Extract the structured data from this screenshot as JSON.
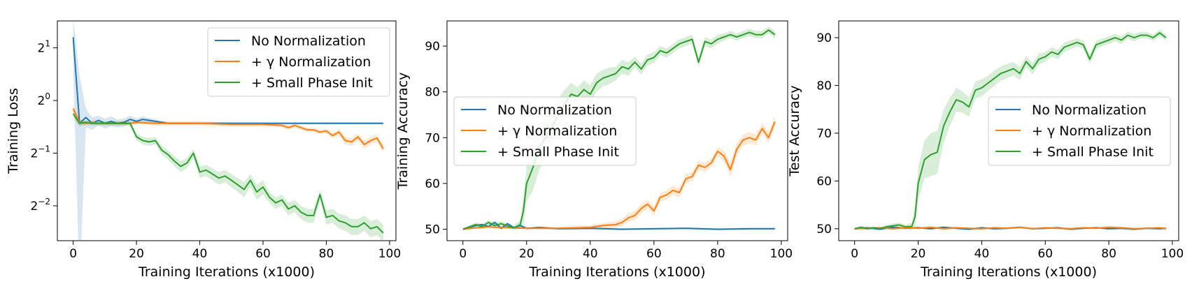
{
  "series_colors": {
    "No Normalization": "#1f77b4",
    "+ γ Normalization": "#ff7f0e",
    "+ Small Phase Init": "#2ca02c"
  },
  "chart_data": [
    {
      "type": "line",
      "title": "",
      "xlabel": "Training Iterations (x1000)",
      "ylabel": "Training Loss",
      "yscale": "log2",
      "xlim": [
        -5,
        102
      ],
      "ylim": [
        0.158,
        2.85
      ],
      "xticks": [
        0,
        20,
        40,
        60,
        80,
        100
      ],
      "yticks": [
        {
          "value": 0.25,
          "base": "2",
          "exp": "−2"
        },
        {
          "value": 0.5,
          "base": "2",
          "exp": "−1"
        },
        {
          "value": 1,
          "base": "2",
          "exp": "0"
        },
        {
          "value": 2,
          "base": "2",
          "exp": "1"
        }
      ],
      "legend": {
        "position": "top-right",
        "entries": [
          "No Normalization",
          "+ γ Normalization",
          "+ Small Phase Init"
        ]
      },
      "series": [
        {
          "name": "No Normalization",
          "color": "#1f77b4",
          "x": [
            0,
            2,
            4,
            6,
            8,
            10,
            12,
            14,
            16,
            18,
            20,
            22,
            30,
            40,
            50,
            60,
            70,
            80,
            90,
            98
          ],
          "y": [
            2.3,
            0.74,
            0.8,
            0.74,
            0.77,
            0.74,
            0.76,
            0.74,
            0.75,
            0.78,
            0.76,
            0.78,
            0.74,
            0.74,
            0.74,
            0.74,
            0.74,
            0.74,
            0.74,
            0.74
          ],
          "band": [
            0.7,
            0.65,
            0.1,
            0.06,
            0.05,
            0.05,
            0.05,
            0.04,
            0.04,
            0.04,
            0.03,
            0.03,
            0.01,
            0.01,
            0.01,
            0.01,
            0.01,
            0.01,
            0.01,
            0.01
          ]
        },
        {
          "name": "+ γ Normalization",
          "color": "#ff7f0e",
          "x": [
            0,
            2,
            4,
            6,
            8,
            10,
            14,
            18,
            20,
            26,
            30,
            40,
            50,
            60,
            66,
            68,
            70,
            72,
            74,
            76,
            78,
            80,
            82,
            84,
            86,
            88,
            90,
            92,
            94,
            96,
            98
          ],
          "y": [
            0.9,
            0.75,
            0.74,
            0.75,
            0.74,
            0.74,
            0.74,
            0.74,
            0.75,
            0.74,
            0.74,
            0.74,
            0.73,
            0.73,
            0.72,
            0.7,
            0.72,
            0.7,
            0.68,
            0.68,
            0.66,
            0.67,
            0.63,
            0.66,
            0.59,
            0.58,
            0.62,
            0.56,
            0.59,
            0.61,
            0.53
          ],
          "band": [
            0.06,
            0.03,
            0.02,
            0.02,
            0.02,
            0.02,
            0.02,
            0.02,
            0.02,
            0.02,
            0.02,
            0.02,
            0.02,
            0.02,
            0.02,
            0.02,
            0.02,
            0.02,
            0.02,
            0.02,
            0.02,
            0.02,
            0.02,
            0.03,
            0.03,
            0.03,
            0.03,
            0.03,
            0.03,
            0.03,
            0.03
          ]
        },
        {
          "name": "+ Small Phase Init",
          "color": "#2ca02c",
          "x": [
            0,
            2,
            4,
            6,
            8,
            10,
            12,
            14,
            16,
            18,
            20,
            22,
            24,
            26,
            28,
            30,
            32,
            34,
            36,
            38,
            40,
            42,
            44,
            46,
            48,
            50,
            52,
            54,
            56,
            58,
            60,
            62,
            64,
            66,
            68,
            70,
            72,
            74,
            76,
            78,
            80,
            82,
            84,
            86,
            88,
            90,
            92,
            94,
            96,
            98
          ],
          "y": [
            0.84,
            0.74,
            0.75,
            0.74,
            0.74,
            0.74,
            0.74,
            0.74,
            0.74,
            0.74,
            0.62,
            0.59,
            0.58,
            0.59,
            0.52,
            0.49,
            0.45,
            0.42,
            0.44,
            0.5,
            0.39,
            0.4,
            0.38,
            0.36,
            0.37,
            0.35,
            0.33,
            0.31,
            0.35,
            0.3,
            0.32,
            0.28,
            0.26,
            0.27,
            0.24,
            0.25,
            0.23,
            0.22,
            0.22,
            0.29,
            0.215,
            0.22,
            0.205,
            0.2,
            0.19,
            0.19,
            0.2,
            0.185,
            0.19,
            0.175
          ],
          "band": [
            0.05,
            0.03,
            0.02,
            0.02,
            0.02,
            0.02,
            0.02,
            0.02,
            0.02,
            0.02,
            0.03,
            0.03,
            0.03,
            0.03,
            0.03,
            0.03,
            0.03,
            0.03,
            0.03,
            0.03,
            0.03,
            0.03,
            0.03,
            0.03,
            0.03,
            0.03,
            0.03,
            0.03,
            0.03,
            0.03,
            0.03,
            0.02,
            0.02,
            0.02,
            0.02,
            0.02,
            0.02,
            0.02,
            0.02,
            0.02,
            0.02,
            0.02,
            0.02,
            0.02,
            0.02,
            0.02,
            0.02,
            0.02,
            0.02,
            0.02
          ]
        }
      ]
    },
    {
      "type": "line",
      "title": "",
      "xlabel": "Training Iterations (x1000)",
      "ylabel": "Training Accuracy",
      "yscale": "linear",
      "xlim": [
        -5,
        102
      ],
      "ylim": [
        47.5,
        95.5
      ],
      "xticks": [
        0,
        20,
        40,
        60,
        80,
        100
      ],
      "yticks": [
        50,
        60,
        70,
        80,
        90
      ],
      "legend": {
        "position": "center-left",
        "entries": [
          "No Normalization",
          "+ γ Normalization",
          "+ Small Phase Init"
        ]
      },
      "series": [
        {
          "name": "No Normalization",
          "color": "#1f77b4",
          "x": [
            0,
            2,
            4,
            6,
            8,
            10,
            12,
            14,
            16,
            18,
            20,
            24,
            30,
            40,
            50,
            60,
            70,
            80,
            90,
            98
          ],
          "y": [
            50,
            50.4,
            50.8,
            51.0,
            50.6,
            51.5,
            50.2,
            51.2,
            50.3,
            50.8,
            50.2,
            50.4,
            50.1,
            50.2,
            50.0,
            50.1,
            50.2,
            50.0,
            50.1,
            50.1
          ],
          "band": [
            0.2,
            0.3,
            0.3,
            0.3,
            0.3,
            0.4,
            0.3,
            0.3,
            0.3,
            0.3,
            0.2,
            0.2,
            0.2,
            0.2,
            0.2,
            0.2,
            0.2,
            0.2,
            0.2,
            0.2
          ]
        },
        {
          "name": "+ γ Normalization",
          "color": "#ff7f0e",
          "x": [
            0,
            4,
            8,
            12,
            16,
            20,
            30,
            40,
            44,
            48,
            50,
            52,
            54,
            56,
            58,
            60,
            62,
            64,
            66,
            68,
            70,
            72,
            74,
            76,
            78,
            80,
            82,
            84,
            86,
            88,
            90,
            92,
            94,
            96,
            98
          ],
          "y": [
            50,
            50.3,
            50.5,
            50.4,
            50.3,
            50.2,
            50.2,
            50.4,
            50.8,
            51.0,
            51.5,
            52.5,
            53.0,
            54.5,
            55.5,
            54.0,
            57.0,
            57.5,
            58.5,
            58.0,
            61.0,
            61.5,
            64.0,
            63.5,
            64.5,
            67.0,
            66.0,
            63.0,
            67.5,
            69.5,
            70.0,
            69.5,
            72.0,
            70.0,
            73.5
          ],
          "band": [
            0.2,
            0.2,
            0.2,
            0.2,
            0.2,
            0.2,
            0.3,
            0.5,
            0.6,
            0.7,
            0.8,
            0.9,
            1.0,
            1.0,
            1.0,
            1.0,
            1.0,
            1.0,
            1.0,
            1.0,
            1.0,
            1.0,
            1.0,
            1.0,
            1.0,
            1.0,
            1.2,
            1.5,
            1.3,
            1.2,
            1.2,
            1.2,
            1.2,
            1.2,
            1.2
          ]
        },
        {
          "name": "+ Small Phase Init",
          "color": "#2ca02c",
          "x": [
            0,
            2,
            4,
            6,
            8,
            10,
            12,
            14,
            16,
            18,
            19,
            20,
            22,
            24,
            26,
            28,
            30,
            32,
            34,
            36,
            38,
            40,
            42,
            44,
            46,
            48,
            50,
            52,
            54,
            56,
            58,
            60,
            62,
            64,
            66,
            68,
            70,
            72,
            74,
            76,
            78,
            80,
            82,
            84,
            86,
            88,
            90,
            92,
            94,
            96,
            98
          ],
          "y": [
            50,
            50.5,
            51.0,
            50.6,
            51.5,
            50.8,
            51.2,
            50.7,
            50.3,
            51.0,
            54.0,
            60.0,
            63.5,
            68.0,
            70.0,
            72.5,
            75.0,
            77.5,
            79.5,
            79.0,
            80.5,
            79.5,
            82.0,
            83.0,
            83.5,
            84.0,
            85.5,
            85.0,
            86.5,
            85.0,
            87.0,
            87.5,
            89.0,
            88.5,
            89.5,
            90.5,
            91.0,
            91.5,
            86.5,
            91.0,
            90.5,
            91.5,
            92.0,
            92.5,
            92.0,
            92.5,
            93.0,
            92.5,
            92.5,
            93.5,
            92.5
          ],
          "band": [
            0.2,
            0.4,
            0.5,
            0.5,
            0.5,
            0.6,
            0.6,
            0.6,
            0.5,
            1.0,
            3.0,
            4.0,
            5.0,
            5.0,
            4.5,
            4.0,
            3.5,
            3.0,
            2.5,
            2.0,
            2.0,
            2.0,
            2.0,
            1.8,
            1.8,
            1.5,
            1.5,
            1.5,
            1.2,
            1.2,
            1.2,
            1.2,
            1.0,
            1.0,
            1.0,
            1.0,
            1.0,
            1.0,
            1.0,
            1.0,
            1.0,
            1.0,
            0.8,
            0.8,
            0.8,
            0.8,
            0.8,
            0.8,
            0.8,
            0.8,
            0.8
          ]
        }
      ]
    },
    {
      "type": "line",
      "title": "",
      "xlabel": "Training Iterations (x1000)",
      "ylabel": "Test Accuracy",
      "yscale": "linear",
      "xlim": [
        -5,
        102
      ],
      "ylim": [
        47.5,
        93.5
      ],
      "xticks": [
        0,
        20,
        40,
        60,
        80,
        100
      ],
      "yticks": [
        50,
        60,
        70,
        80,
        90
      ],
      "legend": {
        "position": "center-right",
        "entries": [
          "No Normalization",
          "+ γ Normalization",
          "+ Small Phase Init"
        ]
      },
      "series": [
        {
          "name": "No Normalization",
          "color": "#1f77b4",
          "x": [
            0,
            4,
            8,
            12,
            16,
            20,
            24,
            28,
            32,
            36,
            40,
            44,
            48,
            52,
            56,
            60,
            64,
            68,
            72,
            76,
            80,
            84,
            88,
            92,
            96,
            98
          ],
          "y": [
            50,
            50.2,
            49.9,
            50.3,
            50.1,
            50.2,
            50.0,
            50.3,
            50.1,
            49.9,
            50.2,
            50.0,
            50.1,
            50.3,
            50.0,
            50.1,
            50.2,
            49.9,
            50.1,
            50.2,
            50.0,
            50.1,
            49.9,
            50.1,
            50.0,
            50.1
          ],
          "band": [
            0.2,
            0.2,
            0.2,
            0.2,
            0.2,
            0.2,
            0.2,
            0.2,
            0.2,
            0.2,
            0.2,
            0.2,
            0.2,
            0.2,
            0.2,
            0.2,
            0.2,
            0.2,
            0.2,
            0.2,
            0.2,
            0.2,
            0.2,
            0.2,
            0.2,
            0.2
          ]
        },
        {
          "name": "+ γ Normalization",
          "color": "#ff7f0e",
          "x": [
            0,
            4,
            8,
            12,
            16,
            20,
            24,
            28,
            32,
            36,
            40,
            44,
            48,
            52,
            56,
            60,
            64,
            68,
            72,
            76,
            80,
            84,
            88,
            92,
            96,
            98
          ],
          "y": [
            50,
            50.1,
            50.2,
            50.0,
            50.2,
            50.1,
            50.3,
            50.0,
            50.2,
            50.1,
            50.0,
            50.2,
            50.1,
            50.3,
            50.0,
            50.2,
            50.1,
            50.0,
            50.2,
            50.1,
            50.3,
            50.2,
            50.0,
            50.1,
            50.2,
            50.0
          ],
          "band": [
            0.2,
            0.2,
            0.2,
            0.2,
            0.2,
            0.2,
            0.2,
            0.2,
            0.2,
            0.2,
            0.2,
            0.2,
            0.2,
            0.2,
            0.2,
            0.2,
            0.2,
            0.2,
            0.2,
            0.2,
            0.2,
            0.2,
            0.2,
            0.2,
            0.2,
            0.2
          ]
        },
        {
          "name": "+ Small Phase Init",
          "color": "#2ca02c",
          "x": [
            0,
            2,
            4,
            6,
            8,
            10,
            12,
            14,
            16,
            18,
            19,
            20,
            22,
            24,
            26,
            28,
            30,
            32,
            34,
            36,
            38,
            40,
            42,
            44,
            46,
            48,
            50,
            52,
            54,
            56,
            58,
            60,
            62,
            64,
            66,
            68,
            70,
            72,
            74,
            76,
            78,
            80,
            82,
            84,
            86,
            88,
            90,
            92,
            94,
            96,
            98
          ],
          "y": [
            50,
            50.3,
            50.0,
            50.2,
            50.0,
            50.4,
            50.6,
            50.8,
            50.4,
            50.5,
            52.5,
            59.5,
            64.5,
            65.5,
            66.0,
            71.5,
            74.5,
            77.0,
            76.5,
            75.5,
            79.0,
            79.5,
            80.5,
            81.5,
            82.5,
            83.0,
            83.5,
            82.5,
            85.0,
            83.5,
            85.5,
            86.0,
            87.0,
            86.5,
            88.0,
            88.5,
            89.0,
            88.5,
            85.5,
            88.5,
            89.0,
            89.5,
            90.0,
            89.5,
            90.5,
            90.0,
            90.5,
            90.5,
            90.0,
            91.0,
            90.0
          ],
          "band": [
            0.2,
            0.3,
            0.3,
            0.3,
            0.3,
            0.4,
            0.5,
            0.5,
            0.4,
            0.8,
            2.0,
            3.5,
            4.0,
            4.5,
            4.5,
            3.5,
            3.0,
            2.5,
            2.2,
            2.0,
            1.8,
            1.8,
            1.6,
            1.6,
            1.5,
            1.5,
            1.4,
            1.4,
            1.2,
            1.2,
            1.2,
            1.0,
            1.0,
            1.0,
            1.0,
            0.9,
            0.9,
            0.9,
            1.0,
            0.9,
            0.8,
            0.8,
            0.8,
            0.8,
            0.8,
            0.8,
            0.7,
            0.7,
            0.7,
            0.7,
            0.7
          ]
        }
      ]
    }
  ]
}
